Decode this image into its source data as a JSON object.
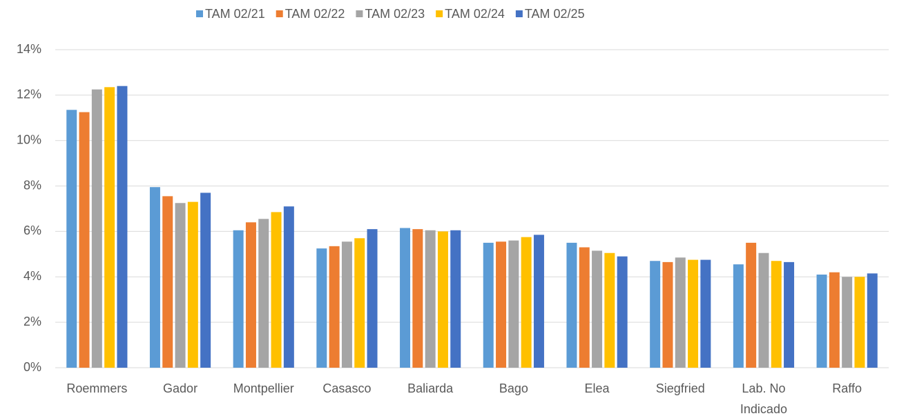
{
  "chart_data": {
    "type": "bar",
    "categories": [
      "Roemmers",
      "Gador",
      "Montpellier",
      "Casasco",
      "Baliarda",
      "Bago",
      "Elea",
      "Siegfried",
      "Lab. No Indicado",
      "Raffo"
    ],
    "series": [
      {
        "name": "TAM 02/21",
        "color": "#5b9bd5",
        "values": [
          11.35,
          7.95,
          6.05,
          5.25,
          6.15,
          5.5,
          5.5,
          4.7,
          4.55,
          4.1
        ]
      },
      {
        "name": "TAM 02/22",
        "color": "#ed7d31",
        "values": [
          11.25,
          7.55,
          6.4,
          5.35,
          6.1,
          5.55,
          5.3,
          4.65,
          5.5,
          4.2
        ]
      },
      {
        "name": "TAM 02/23",
        "color": "#a5a5a5",
        "values": [
          12.25,
          7.25,
          6.55,
          5.55,
          6.05,
          5.6,
          5.15,
          4.85,
          5.05,
          4.0
        ]
      },
      {
        "name": "TAM 02/24",
        "color": "#ffc000",
        "values": [
          12.35,
          7.3,
          6.85,
          5.7,
          6.0,
          5.75,
          5.05,
          4.75,
          4.7,
          4.0
        ]
      },
      {
        "name": "TAM 02/25",
        "color": "#4472c4",
        "values": [
          12.4,
          7.7,
          7.1,
          6.1,
          6.05,
          5.85,
          4.9,
          4.75,
          4.65,
          4.15
        ]
      }
    ],
    "ylim": [
      0,
      14
    ],
    "yticks": [
      {
        "value": 0,
        "label": "0%"
      },
      {
        "value": 2,
        "label": "2%"
      },
      {
        "value": 4,
        "label": "4%"
      },
      {
        "value": 6,
        "label": "6%"
      },
      {
        "value": 8,
        "label": "8%"
      },
      {
        "value": 10,
        "label": "10%"
      },
      {
        "value": 12,
        "label": "12%"
      },
      {
        "value": 14,
        "label": "14%"
      }
    ],
    "grid": true,
    "legend": "top"
  }
}
